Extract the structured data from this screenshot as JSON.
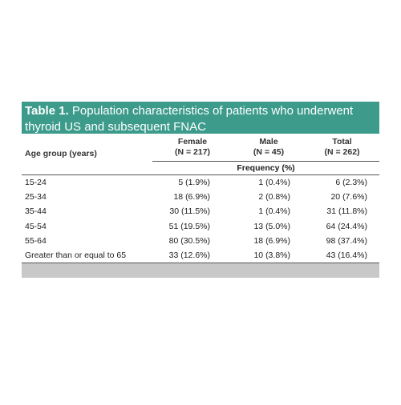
{
  "title": {
    "label": "Table 1.",
    "text": "Population characteristics of patients who underwent thyroid US and subsequent FNAC"
  },
  "table": {
    "age_header": "Age group (years)",
    "columns": [
      [
        "Female",
        "(N = 217)"
      ],
      [
        "Male",
        "(N = 45)"
      ],
      [
        "Total",
        "(N = 262)"
      ]
    ],
    "frequency_label": "Frequency (%)",
    "rows": [
      [
        "15-24",
        "5 (1.9%)",
        "1 (0.4%)",
        "6 (2.3%)"
      ],
      [
        "25-34",
        "18 (6.9%)",
        "2 (0.8%)",
        "20 (7.6%)"
      ],
      [
        "35-44",
        "30 (11.5%)",
        "1 (0.4%)",
        "31 (11.8%)"
      ],
      [
        "45-54",
        "51 (19.5%)",
        "13 (5.0%)",
        "64 (24.4%)"
      ],
      [
        "55-64",
        "80 (30.5%)",
        "18 (6.9%)",
        "98 (37.4%)"
      ],
      [
        "Greater than or equal to 65",
        "33 (12.6%)",
        "10 (3.8%)",
        "43 (16.4%)"
      ]
    ]
  }
}
